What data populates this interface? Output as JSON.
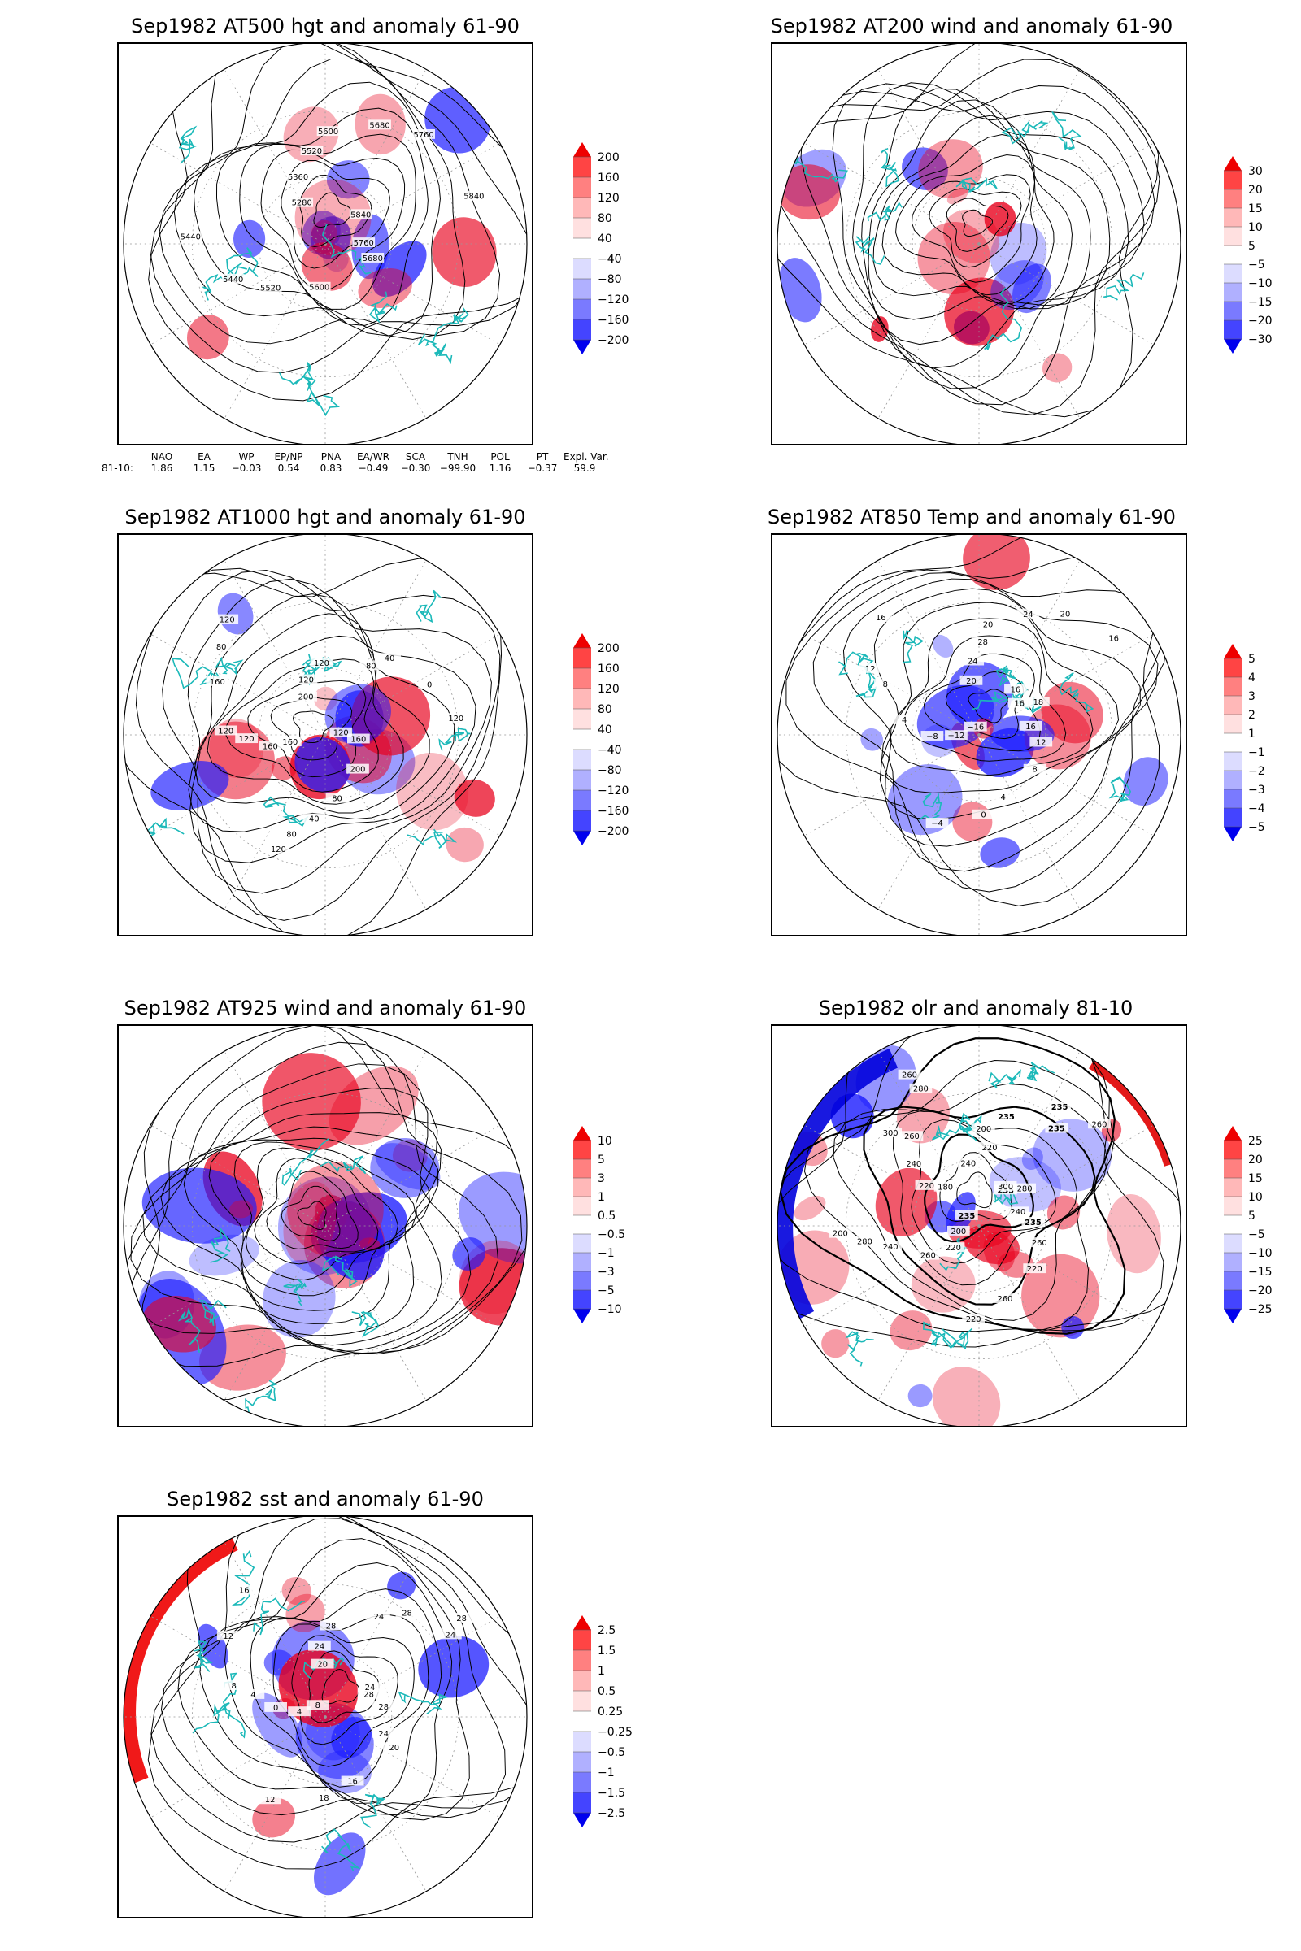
{
  "panels": [
    {
      "id": "p1",
      "title": "Sep1982 AT500 hgt and anomaly 61-90",
      "contour_labels": [
        "5840",
        "5760",
        "5680",
        "5600",
        "5520",
        "5440",
        "5440",
        "5280",
        "5360",
        "5520",
        "5600",
        "5680",
        "5760",
        "5840"
      ],
      "colorbar": [
        "200",
        "160",
        "120",
        "80",
        "40",
        "−40",
        "−80",
        "−120",
        "−160",
        "−200"
      ]
    },
    {
      "id": "p2",
      "title": "Sep1982 AT200 wind and anomaly 61-90",
      "contour_labels": [],
      "colorbar": [
        "30",
        "20",
        "15",
        "10",
        "5",
        "−5",
        "−10",
        "−15",
        "−20",
        "−30"
      ]
    },
    {
      "id": "p3",
      "title": "Sep1982 AT1000 hgt and anomaly 61-90",
      "contour_labels": [
        "120",
        "160",
        "200",
        "80",
        "40",
        "80",
        "120",
        "160",
        "160",
        "120",
        "120",
        "160",
        "80",
        "120",
        "200",
        "120",
        "120",
        "80",
        "40",
        "0",
        "120"
      ],
      "colorbar": [
        "200",
        "160",
        "120",
        "80",
        "40",
        "−40",
        "−80",
        "−120",
        "−160",
        "−200"
      ]
    },
    {
      "id": "p4",
      "title": "Sep1982 AT850 Temp and anomaly 61-90",
      "contour_labels": [
        "16",
        "16",
        "12",
        "8",
        "4",
        "0",
        "−4",
        "−16",
        "−12",
        "−8",
        "4",
        "8",
        "12",
        "16",
        "20",
        "24",
        "28",
        "20",
        "24",
        "20",
        "16",
        "16",
        "18"
      ],
      "colorbar": [
        "5",
        "4",
        "3",
        "2",
        "1",
        "−1",
        "−2",
        "−3",
        "−4",
        "−5"
      ]
    },
    {
      "id": "p5",
      "title": "Sep1982 AT925 wind and anomaly 61-90",
      "contour_labels": [],
      "colorbar": [
        "10",
        "5",
        "3",
        "1",
        "0.5",
        "−0.5",
        "−1",
        "−3",
        "−5",
        "−10"
      ]
    },
    {
      "id": "p6",
      "title": "Sep1982 olr and anomaly 81-10",
      "contour_labels": [
        "235",
        "240",
        "235",
        "260",
        "220",
        "260",
        "220",
        "235",
        "200",
        "220",
        "260",
        "240",
        "280",
        "200",
        "180",
        "220",
        "240",
        "260",
        "300",
        "280",
        "260",
        "240",
        "220",
        "200",
        "235",
        "235",
        "235",
        "260",
        "300",
        "280"
      ],
      "colorbar": [
        "25",
        "20",
        "15",
        "10",
        "5",
        "−5",
        "−10",
        "−15",
        "−20",
        "−25"
      ]
    },
    {
      "id": "p7",
      "title": "Sep1982 sst and anomaly 61-90",
      "contour_labels": [
        "28",
        "28",
        "24",
        "20",
        "16",
        "18",
        "12",
        "8",
        "4",
        "0",
        "4",
        "8",
        "12",
        "16",
        "20",
        "24",
        "28",
        "24",
        "28",
        "24",
        "28",
        "24"
      ],
      "colorbar": [
        "2.5",
        "1.5",
        "1",
        "0.5",
        "0.25",
        "−0.25",
        "−0.5",
        "−1",
        "−1.5",
        "−2.5"
      ]
    }
  ],
  "teleconnection": {
    "headers": [
      "NAO",
      "EA",
      "WP",
      "EP/NP",
      "PNA",
      "EA/WR",
      "SCA",
      "TNH",
      "POL",
      "PT",
      "Expl. Var."
    ],
    "row_label": "81-10:",
    "values": [
      "1.86",
      "1.15",
      "−0.03",
      "0.54",
      "0.83",
      "−0.49",
      "−0.30",
      "−99.90",
      "1.16",
      "−0.37",
      "59.9"
    ]
  },
  "colors": {
    "anom_pos": "#e8001c",
    "anom_neg": "#1a1aff",
    "coast": "#1cb9b9",
    "contour": "#000000"
  }
}
